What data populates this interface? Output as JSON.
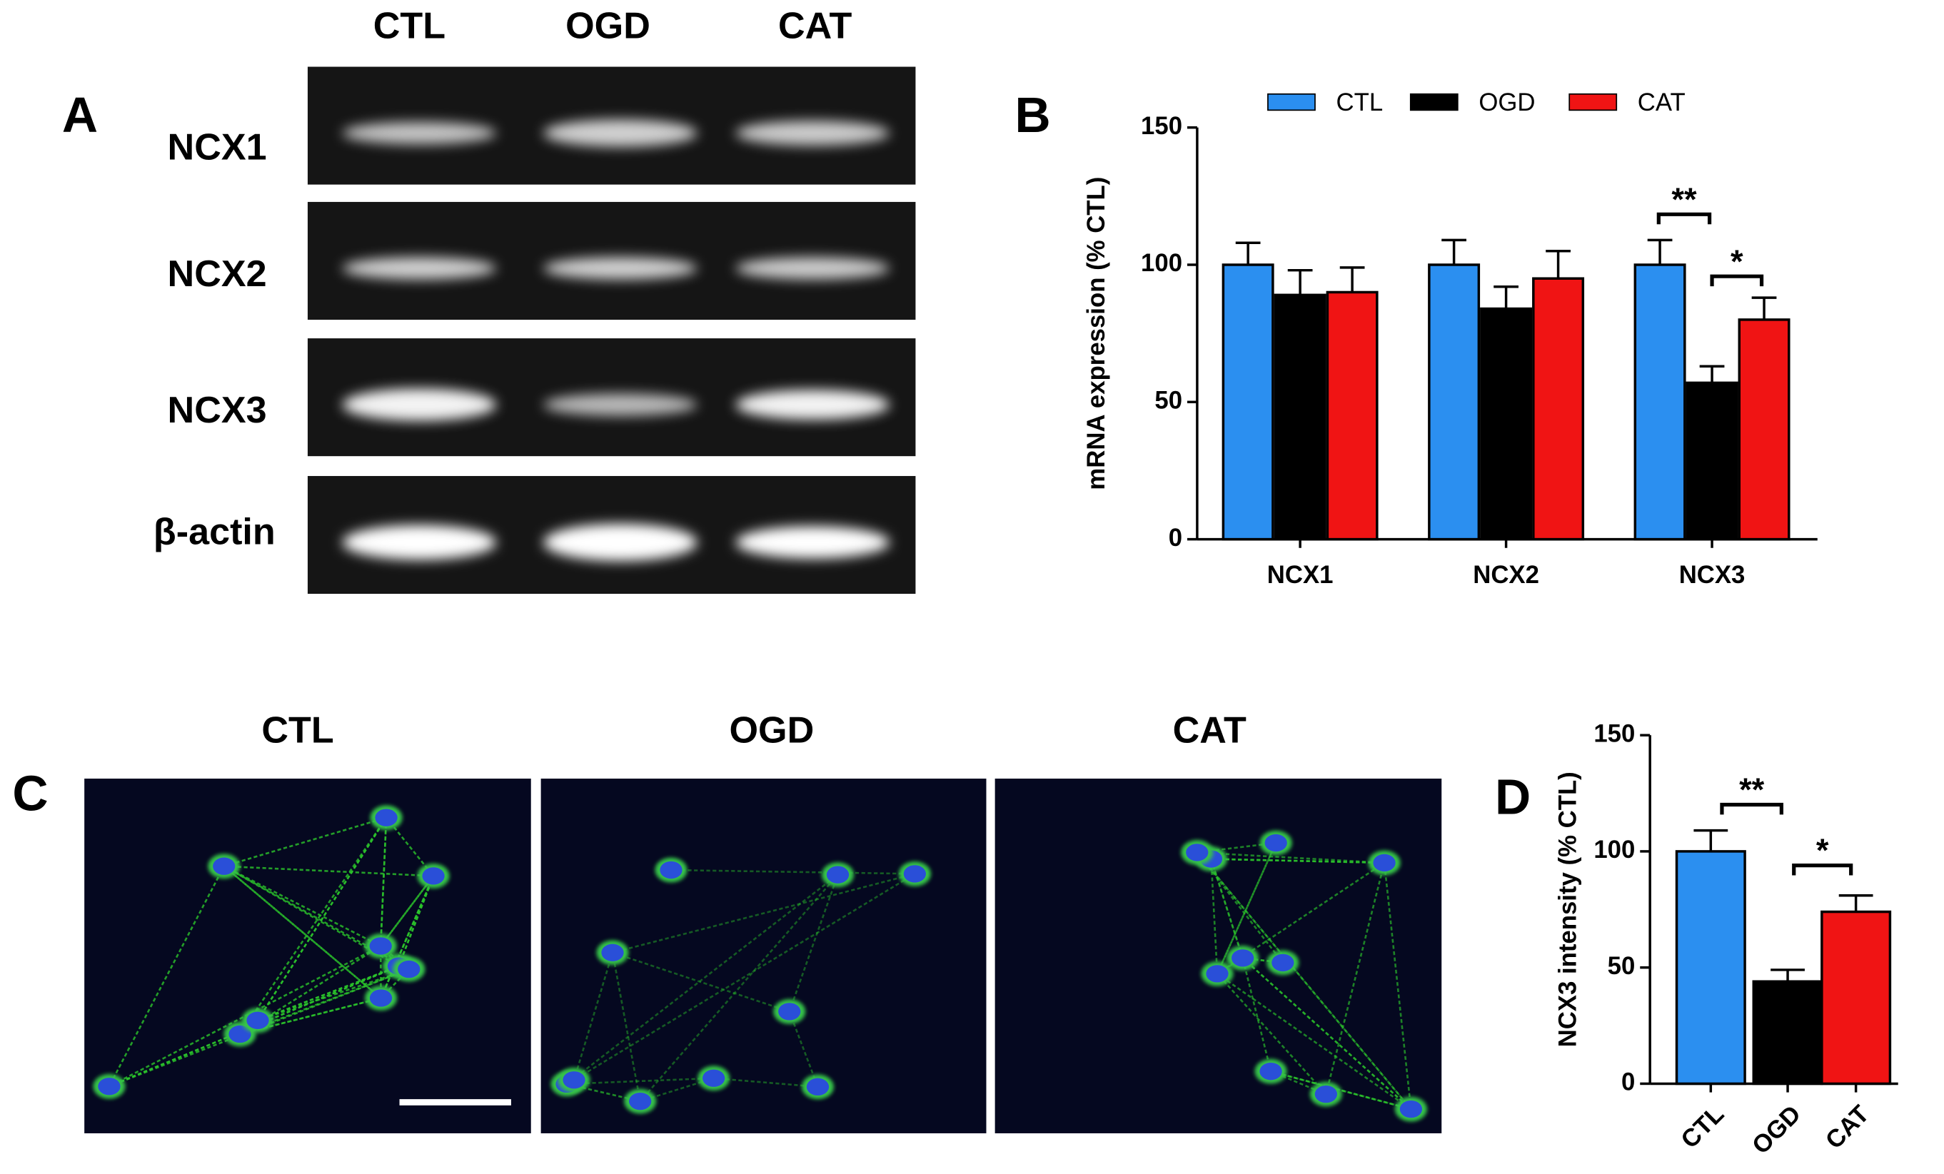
{
  "panels": [
    "A",
    "B",
    "C",
    "D"
  ],
  "gel": {
    "lanes": [
      "CTL",
      "OGD",
      "CAT"
    ],
    "rows": [
      "NCX1",
      "NCX2",
      "NCX3",
      "β-actin"
    ]
  },
  "micrographs": {
    "labels": [
      "CTL",
      "OGD",
      "CAT"
    ]
  },
  "chart_data": [
    {
      "type": "bar",
      "ylabel": "mRNA expression (% CTL)",
      "categories": [
        "NCX1",
        "NCX2",
        "NCX3"
      ],
      "series": [
        {
          "name": "CTL",
          "color": "#2b8ff0",
          "values": [
            100,
            100,
            100
          ],
          "errors": [
            8,
            9,
            9
          ]
        },
        {
          "name": "OGD",
          "color": "#000000",
          "values": [
            89,
            84,
            57
          ],
          "errors": [
            9,
            8,
            6
          ]
        },
        {
          "name": "CAT",
          "color": "#f01414",
          "values": [
            90,
            95,
            80
          ],
          "errors": [
            9,
            10,
            8
          ]
        }
      ],
      "annotations": [
        "**",
        "*"
      ],
      "ylim": [
        0,
        150
      ],
      "yticks": [
        0,
        50,
        100,
        150
      ],
      "legend": "top"
    },
    {
      "type": "bar",
      "ylabel": "NCX3 intensity (% CTL)",
      "categories": [
        "CTL",
        "OGD",
        "CAT"
      ],
      "values": [
        100,
        44,
        74
      ],
      "errors": [
        9,
        5,
        7
      ],
      "colors": [
        "#2b8ff0",
        "#000000",
        "#f01414"
      ],
      "annotations": [
        "**",
        "*"
      ],
      "ylim": [
        0,
        150
      ],
      "yticks": [
        0,
        50,
        100,
        150
      ]
    }
  ]
}
